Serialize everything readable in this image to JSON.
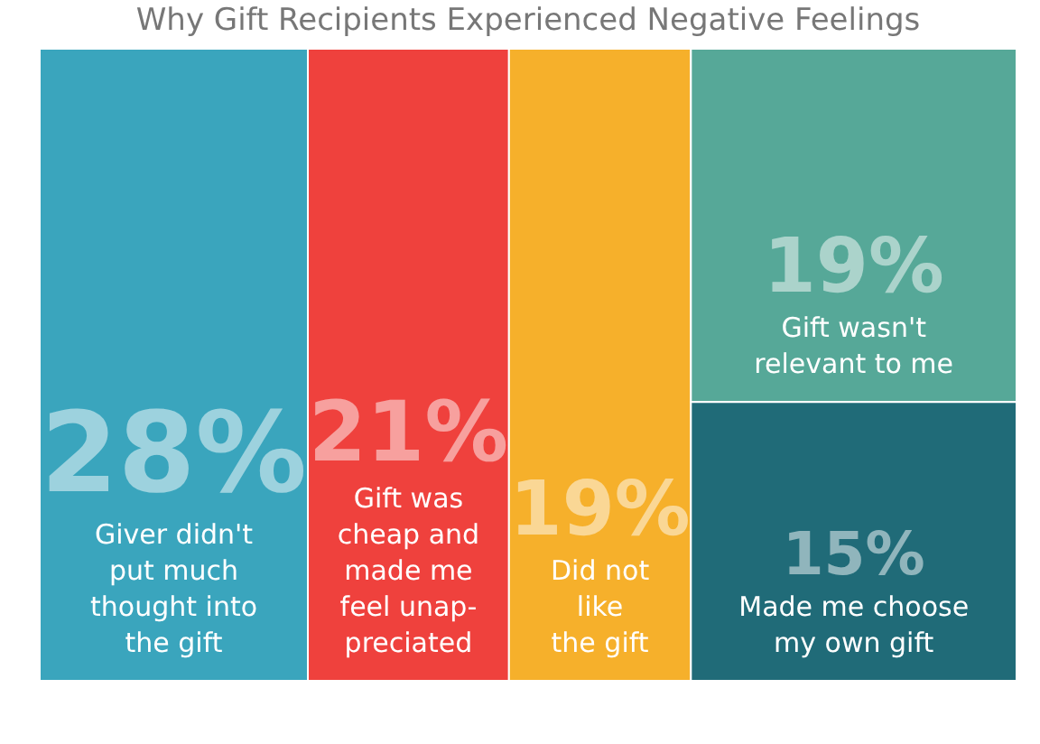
{
  "chart_data": {
    "type": "other",
    "title": "Why Gift Recipients Experienced Negative Feelings",
    "categories": [
      "Giver didn't\nput much\nthought into\nthe gift",
      "Gift was\ncheap and\nmade me\nfeel unap-\npreciated",
      "Did not\nlike\nthe gift",
      "Gift wasn't\nrelevant to me",
      "Made me choose\nmy own gift"
    ],
    "values": [
      28,
      21,
      19,
      19,
      15
    ],
    "colors": [
      "#3aa5bd",
      "#ef413d",
      "#f6b02b",
      "#56a898",
      "#206b78"
    ],
    "value_labels": [
      "28%",
      "21%",
      "19%",
      "19%",
      "15%"
    ]
  }
}
